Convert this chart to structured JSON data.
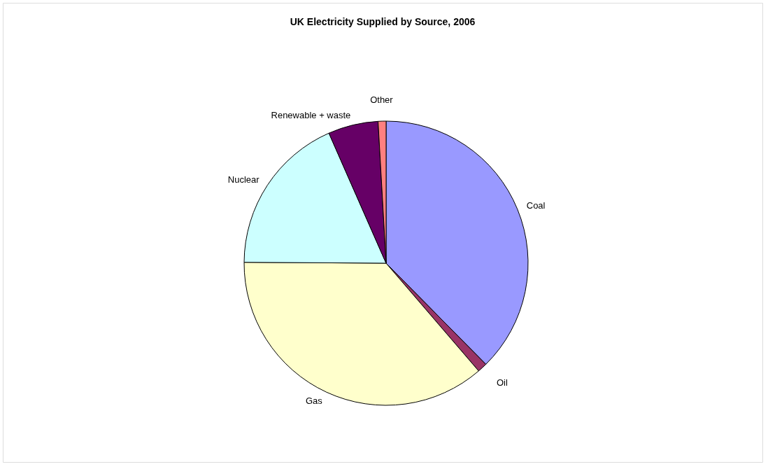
{
  "chart_data": {
    "type": "pie",
    "title": "UK Electricity Supplied by Source, 2006",
    "categories": [
      "Coal",
      "Oil",
      "Gas",
      "Nuclear",
      "Renewable + waste",
      "Other"
    ],
    "values": [
      37.6,
      1.1,
      36.4,
      18.3,
      5.7,
      0.9
    ],
    "colors": [
      "#9999ff",
      "#993366",
      "#ffffcc",
      "#ccffff",
      "#660066",
      "#ff8080"
    ],
    "legend": false
  }
}
